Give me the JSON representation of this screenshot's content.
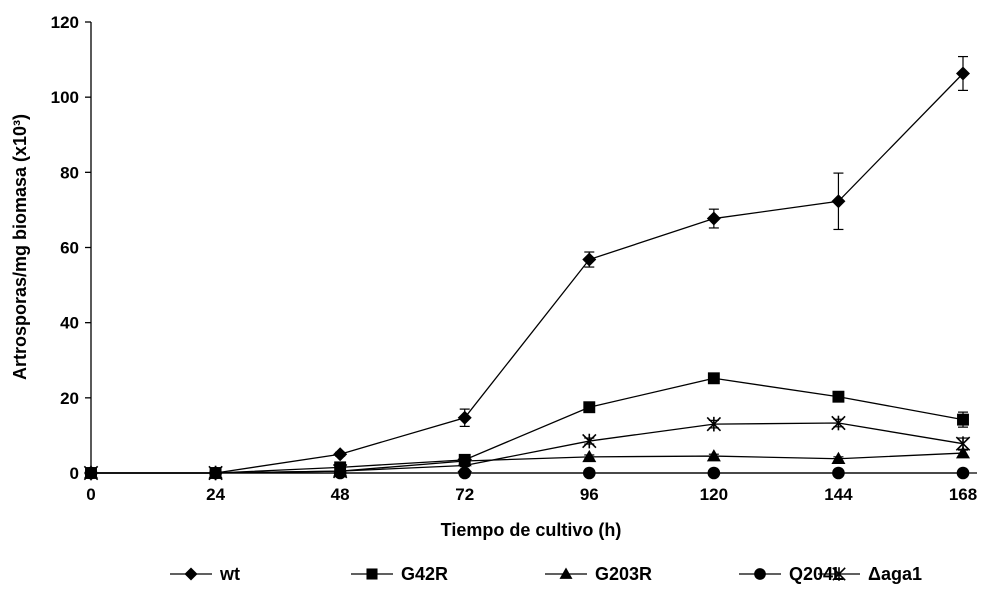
{
  "chart_data": {
    "type": "line",
    "title": "",
    "xlabel": "Tiempo de cultivo (h)",
    "ylabel": "Artrosporas/mg biomasa (x10³)",
    "x": [
      0,
      24,
      48,
      72,
      96,
      120,
      144,
      168
    ],
    "x_tick_labels": [
      "0",
      "24",
      "48",
      "72",
      "96",
      "120",
      "144",
      "168"
    ],
    "y_tick_labels": [
      "0",
      "20",
      "40",
      "60",
      "80",
      "100",
      "120"
    ],
    "ylim": [
      0,
      120
    ],
    "grid": false,
    "legend_position": "bottom",
    "series": [
      {
        "name": "wt",
        "marker": "diamond",
        "values": [
          0,
          0,
          5,
          14.7,
          56.8,
          67.7,
          72.3,
          106.3
        ],
        "errors": [
          0,
          0,
          0.5,
          2.3,
          2.0,
          2.5,
          7.5,
          4.5
        ]
      },
      {
        "name": "G42R",
        "marker": "square",
        "values": [
          0,
          0,
          1.5,
          3.5,
          17.5,
          25.2,
          20.3,
          14.2
        ],
        "errors": [
          0,
          0,
          0.3,
          0.5,
          1.0,
          0.8,
          1.0,
          2.0
        ]
      },
      {
        "name": "G203R",
        "marker": "triangle",
        "values": [
          0,
          0,
          0.5,
          3.2,
          4.3,
          4.5,
          3.8,
          5.3
        ],
        "errors": [
          0,
          0,
          0.2,
          0.3,
          0.5,
          0.5,
          0.5,
          0.8
        ]
      },
      {
        "name": "Q204L",
        "marker": "circle",
        "values": [
          0,
          0,
          0,
          0,
          0,
          0,
          0,
          0
        ],
        "errors": [
          0,
          0,
          0,
          0,
          0,
          0,
          0,
          0
        ]
      },
      {
        "name": "Δaga1",
        "marker": "star",
        "values": [
          0,
          0,
          0.5,
          2.0,
          8.5,
          13.0,
          13.3,
          7.8
        ],
        "errors": [
          0,
          0,
          0.2,
          0.3,
          0.8,
          1.0,
          1.0,
          1.5
        ]
      }
    ],
    "colors": {
      "line": "#000000",
      "marker": "#000000"
    }
  }
}
